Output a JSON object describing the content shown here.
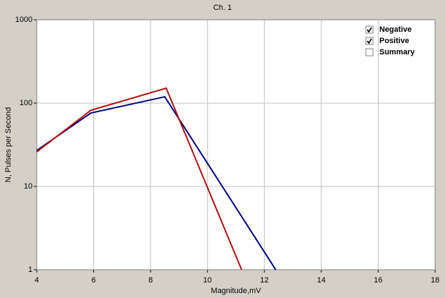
{
  "chart_data": {
    "type": "line",
    "title": "Ch. 1",
    "x_label": "Magnitude,mV",
    "y_label": "N, Pulses per Second",
    "xlim": [
      4,
      18
    ],
    "xticks": [
      4,
      6,
      8,
      10,
      12,
      14,
      16,
      18
    ],
    "ylim": [
      1,
      1000
    ],
    "yticks": [
      1,
      10,
      100,
      1000
    ],
    "log_y": true,
    "grid": true,
    "legend_position": "upper-right",
    "series": [
      {
        "name": "Negative",
        "color": "#000080",
        "checked": true,
        "x": [
          4,
          5.9,
          8.5,
          12.4
        ],
        "values": [
          27,
          76,
          119,
          1
        ]
      },
      {
        "name": "Positive",
        "color": "#b01010",
        "checked": true,
        "x": [
          4,
          5.9,
          8.55,
          11.2
        ],
        "values": [
          26,
          82,
          151,
          1
        ]
      },
      {
        "name": "Summary",
        "color": "#000000",
        "checked": false,
        "x": [
          4,
          5.9,
          8.5,
          12.4
        ],
        "values": [
          null,
          null,
          null,
          null
        ]
      }
    ]
  }
}
